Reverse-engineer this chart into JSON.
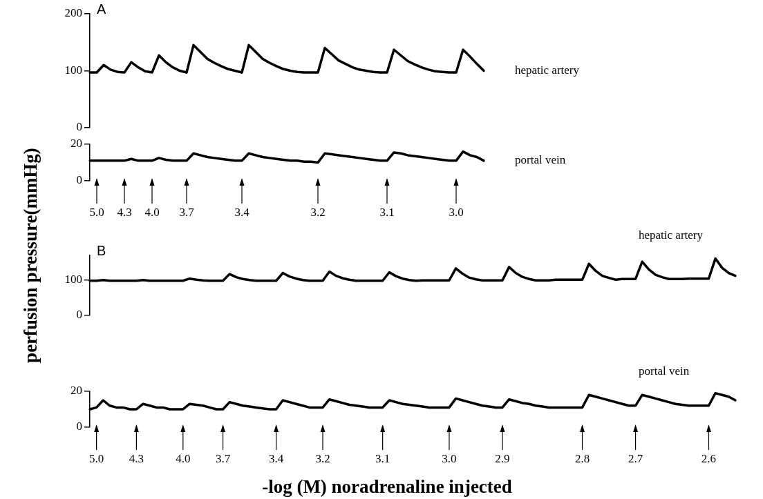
{
  "chart_data": [
    {
      "type": "line",
      "title": "A",
      "ylabel": "perfusion pressure(mmHg)",
      "ylim": [
        0,
        200
      ],
      "yticks": [
        0,
        100,
        200
      ],
      "tick_labels": "y",
      "grid": false,
      "legend": false,
      "marker": "none",
      "line_style": "solid",
      "categories": [
        null,
        "5.0",
        null,
        null,
        null,
        "4.3",
        null,
        null,
        null,
        "4.0",
        null,
        null,
        null,
        null,
        "3.7",
        null,
        null,
        null,
        null,
        null,
        null,
        null,
        "3.4",
        null,
        null,
        null,
        null,
        null,
        null,
        null,
        null,
        null,
        null,
        "3.2",
        null,
        null,
        null,
        null,
        null,
        null,
        null,
        null,
        null,
        "3.1",
        null,
        null,
        null,
        null,
        null,
        null,
        null,
        null,
        null,
        "3.0",
        null,
        null,
        null,
        null
      ],
      "series": [
        {
          "name": "hepatic artery",
          "color": "#000000",
          "values": [
            97,
            97,
            110,
            102,
            98,
            97,
            115,
            106,
            99,
            97,
            127,
            115,
            106,
            100,
            97,
            145,
            133,
            121,
            114,
            108,
            103,
            100,
            97,
            145,
            133,
            121,
            114,
            108,
            103,
            100,
            98,
            97,
            97,
            97,
            140,
            129,
            118,
            112,
            106,
            102,
            100,
            98,
            97,
            97,
            137,
            127,
            117,
            111,
            106,
            102,
            99,
            98,
            97,
            97,
            137,
            125,
            112,
            100
          ]
        }
      ]
    },
    {
      "type": "line",
      "ylim": [
        0,
        20
      ],
      "yticks": [
        0,
        20
      ],
      "grid": false,
      "legend": false,
      "marker": "none",
      "line_style": "solid",
      "categories": [
        null,
        "5.0",
        null,
        null,
        null,
        "4.3",
        null,
        null,
        null,
        "4.0",
        null,
        null,
        null,
        null,
        "3.7",
        null,
        null,
        null,
        null,
        null,
        null,
        null,
        "3.4",
        null,
        null,
        null,
        null,
        null,
        null,
        null,
        null,
        null,
        null,
        "3.2",
        null,
        null,
        null,
        null,
        null,
        null,
        null,
        null,
        null,
        "3.1",
        null,
        null,
        null,
        null,
        null,
        null,
        null,
        null,
        null,
        "3.0",
        null,
        null,
        null,
        null
      ],
      "series": [
        {
          "name": "portal vein",
          "color": "#000000",
          "values": [
            11,
            11,
            11,
            11,
            11,
            11,
            12,
            11,
            11,
            11,
            12.5,
            11.5,
            11,
            11,
            11,
            15,
            14,
            13,
            12.5,
            12,
            11.5,
            11,
            11,
            15,
            14,
            13,
            12.5,
            12,
            11.5,
            11,
            11,
            10.5,
            10.5,
            10,
            15,
            14.5,
            14,
            13.5,
            13,
            12.5,
            12,
            11.5,
            11,
            11,
            15.5,
            15,
            14,
            13.5,
            13,
            12.5,
            12,
            11.5,
            11,
            11,
            16,
            14,
            13,
            11
          ]
        }
      ]
    },
    {
      "type": "line",
      "title": "B",
      "ylim": [
        0,
        170
      ],
      "yticks": [
        0,
        100
      ],
      "tick_labels": "y",
      "grid": false,
      "legend": false,
      "marker": "none",
      "line_style": "solid",
      "categories": [
        null,
        "5.0",
        null,
        null,
        null,
        null,
        null,
        "4.3",
        null,
        null,
        null,
        null,
        null,
        null,
        "4.0",
        null,
        null,
        null,
        null,
        null,
        "3.7",
        null,
        null,
        null,
        null,
        null,
        null,
        null,
        "3.4",
        null,
        null,
        null,
        null,
        null,
        null,
        "3.2",
        null,
        null,
        null,
        null,
        null,
        null,
        null,
        null,
        "3.1",
        null,
        null,
        null,
        null,
        null,
        null,
        null,
        null,
        null,
        "3.0",
        null,
        null,
        null,
        null,
        null,
        null,
        null,
        "2.9",
        null,
        null,
        null,
        null,
        null,
        null,
        null,
        null,
        null,
        null,
        null,
        "2.8",
        null,
        null,
        null,
        null,
        null,
        null,
        null,
        "2.7",
        null,
        null,
        null,
        null,
        null,
        null,
        null,
        null,
        null,
        null,
        "2.6",
        null,
        null,
        null,
        null
      ],
      "series": [
        {
          "name": "hepatic artery",
          "color": "#000000",
          "values": [
            98,
            98,
            100,
            98,
            98,
            98,
            98,
            98,
            100,
            98,
            98,
            98,
            98,
            98,
            98,
            104,
            101,
            99,
            98,
            98,
            98,
            117,
            108,
            103,
            100,
            98,
            98,
            98,
            98,
            120,
            110,
            104,
            100,
            98,
            98,
            98,
            124,
            112,
            105,
            101,
            98,
            98,
            98,
            98,
            98,
            122,
            111,
            104,
            100,
            98,
            99,
            99,
            99,
            99,
            99,
            133,
            118,
            107,
            102,
            99,
            99,
            99,
            99,
            137,
            120,
            109,
            103,
            99,
            99,
            99,
            101,
            101,
            101,
            101,
            101,
            146,
            126,
            112,
            106,
            101,
            103,
            103,
            103,
            152,
            130,
            115,
            108,
            103,
            103,
            103,
            104,
            104,
            104,
            104,
            161,
            135,
            120,
            112
          ]
        }
      ]
    },
    {
      "type": "line",
      "xlabel": "-log (M) noradrenaline injected",
      "ylim": [
        0,
        20
      ],
      "yticks": [
        0,
        20
      ],
      "grid": false,
      "legend": false,
      "marker": "none",
      "line_style": "solid",
      "categories": [
        null,
        "5.0",
        null,
        null,
        null,
        null,
        null,
        "4.3",
        null,
        null,
        null,
        null,
        null,
        null,
        "4.0",
        null,
        null,
        null,
        null,
        null,
        "3.7",
        null,
        null,
        null,
        null,
        null,
        null,
        null,
        "3.4",
        null,
        null,
        null,
        null,
        null,
        null,
        "3.2",
        null,
        null,
        null,
        null,
        null,
        null,
        null,
        null,
        "3.1",
        null,
        null,
        null,
        null,
        null,
        null,
        null,
        null,
        null,
        "3.0",
        null,
        null,
        null,
        null,
        null,
        null,
        null,
        "2.9",
        null,
        null,
        null,
        null,
        null,
        null,
        null,
        null,
        null,
        null,
        null,
        "2.8",
        null,
        null,
        null,
        null,
        null,
        null,
        null,
        "2.7",
        null,
        null,
        null,
        null,
        null,
        null,
        null,
        null,
        null,
        null,
        "2.6",
        null,
        null,
        null,
        null
      ],
      "series": [
        {
          "name": "portal vein",
          "color": "#000000",
          "values": [
            10,
            11,
            15,
            12,
            11,
            11,
            10,
            10,
            13,
            12,
            11,
            11,
            10,
            10,
            10,
            13,
            12.5,
            12,
            11,
            10,
            10,
            14,
            13,
            12,
            11.5,
            11,
            10.5,
            10,
            10,
            15,
            14,
            13,
            12,
            11,
            11,
            11,
            15.5,
            14.5,
            13.5,
            12.5,
            12,
            11.5,
            11,
            11,
            11,
            15,
            14,
            13,
            12.5,
            12,
            11.5,
            11,
            11,
            11,
            11,
            16,
            15,
            14,
            13,
            12,
            11.5,
            11,
            11,
            15.5,
            14.5,
            13.5,
            13,
            12,
            11.5,
            11,
            11,
            11,
            11,
            11,
            11,
            18,
            17,
            16,
            15,
            14,
            13,
            12,
            12,
            18,
            17,
            16,
            15,
            14,
            13,
            12.5,
            12,
            12,
            12,
            12,
            19,
            18,
            17,
            15
          ]
        }
      ]
    }
  ]
}
